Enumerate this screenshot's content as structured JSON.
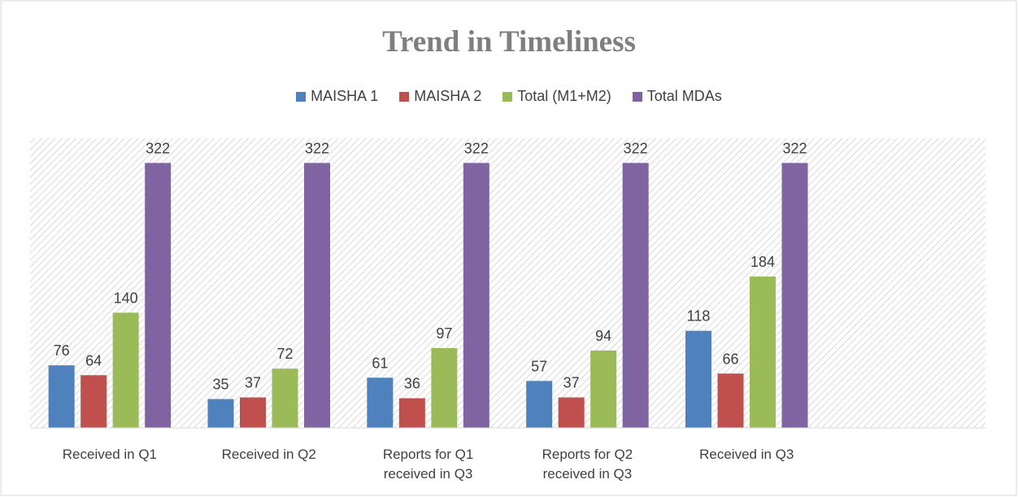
{
  "chart_data": {
    "type": "bar",
    "title": "Trend in Timeliness",
    "categories": [
      "Received in Q1",
      "Received in Q2",
      "Reports for Q1 received in Q3",
      "Reports for Q2 received in Q3",
      "Received in Q3",
      null
    ],
    "series": [
      {
        "name": "MAISHA 1",
        "color": "#4f81bd",
        "values": [
          76,
          35,
          61,
          57,
          118,
          null
        ]
      },
      {
        "name": "MAISHA 2",
        "color": "#c0504d",
        "values": [
          64,
          37,
          36,
          37,
          66,
          null
        ]
      },
      {
        "name": "Total (M1+M2)",
        "color": "#9bbb59",
        "values": [
          140,
          72,
          97,
          94,
          184,
          null
        ]
      },
      {
        "name": "Total MDAs",
        "color": "#8064a2",
        "values": [
          322,
          322,
          322,
          322,
          322,
          null
        ]
      }
    ],
    "ylim": [
      0,
      352
    ],
    "legend": "top"
  }
}
